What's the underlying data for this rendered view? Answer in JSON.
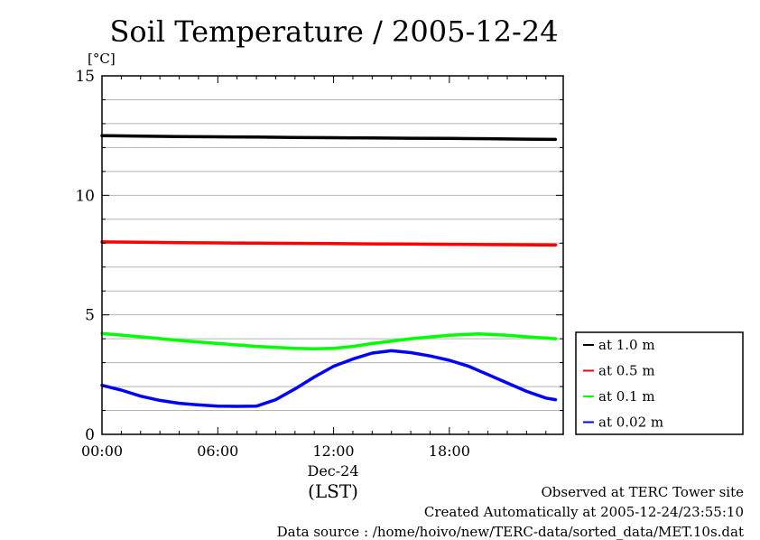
{
  "chart_data": {
    "type": "line",
    "title": "Soil Temperature / 2005-12-24",
    "ylabel": "[°C]",
    "xlabel": "(LST)",
    "date_label": "Dec-24",
    "x_unit": "hours",
    "xlim": [
      0,
      23.9
    ],
    "ylim": [
      0,
      15
    ],
    "grid": true,
    "legend_position": "right, lower",
    "x_ticks": [
      {
        "value": 0,
        "label": "00:00"
      },
      {
        "value": 6,
        "label": "06:00"
      },
      {
        "value": 12,
        "label": "12:00"
      },
      {
        "value": 18,
        "label": "18:00"
      }
    ],
    "y_ticks": [
      {
        "value": 0,
        "label": "0"
      },
      {
        "value": 5,
        "label": "5"
      },
      {
        "value": 10,
        "label": "10"
      },
      {
        "value": 15,
        "label": "15"
      }
    ],
    "series": [
      {
        "name": "at 1.0 m",
        "color": "#000000",
        "x": [
          0,
          2,
          4,
          6,
          8,
          10,
          12,
          14,
          16,
          18,
          20,
          22,
          23.5
        ],
        "y": [
          12.5,
          12.48,
          12.46,
          12.45,
          12.44,
          12.42,
          12.41,
          12.4,
          12.39,
          12.38,
          12.37,
          12.35,
          12.34
        ]
      },
      {
        "name": "at 0.5 m",
        "color": "#ff0000",
        "x": [
          0,
          2,
          4,
          6,
          8,
          10,
          12,
          14,
          16,
          18,
          20,
          22,
          23.5
        ],
        "y": [
          8.05,
          8.04,
          8.02,
          8.01,
          8.0,
          7.99,
          7.98,
          7.97,
          7.96,
          7.95,
          7.94,
          7.93,
          7.92
        ]
      },
      {
        "name": "at 0.1 m",
        "color": "#00ff00",
        "x": [
          0,
          2,
          4,
          6,
          8,
          10,
          11,
          12,
          13,
          14,
          16,
          18,
          19.5,
          21,
          22,
          23.5
        ],
        "y": [
          4.22,
          4.08,
          3.93,
          3.8,
          3.68,
          3.6,
          3.58,
          3.6,
          3.68,
          3.8,
          4.0,
          4.15,
          4.2,
          4.15,
          4.08,
          4.0
        ]
      },
      {
        "name": "at 0.02 m",
        "color": "#0000ff",
        "x": [
          0,
          1,
          2,
          3,
          4,
          5,
          6,
          7,
          8,
          9,
          10,
          11,
          12,
          13,
          14,
          15,
          16,
          17,
          18,
          19,
          20,
          21,
          22,
          23,
          23.5
        ],
        "y": [
          2.05,
          1.85,
          1.6,
          1.42,
          1.3,
          1.23,
          1.18,
          1.17,
          1.18,
          1.45,
          1.9,
          2.4,
          2.85,
          3.15,
          3.4,
          3.5,
          3.42,
          3.28,
          3.1,
          2.85,
          2.5,
          2.15,
          1.8,
          1.52,
          1.45
        ]
      }
    ]
  },
  "footer": {
    "site": "Observed at TERC Tower site",
    "created": "Created Automatically at 2005-12-24/23:55:10",
    "source": "Data source : /home/hoivo/new/TERC-data/sorted_data/MET.10s.dat"
  }
}
